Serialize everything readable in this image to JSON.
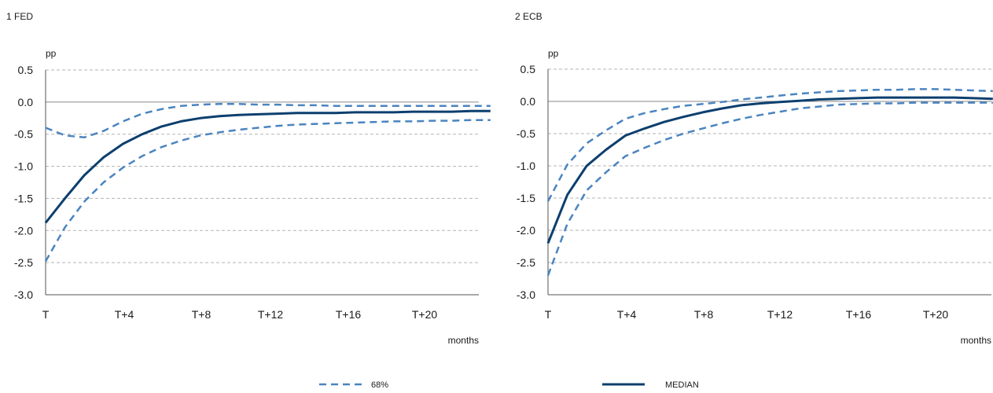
{
  "chart_data": [
    {
      "type": "line",
      "title": "1 FED",
      "ylabel": "pp",
      "xlabel": "months",
      "ylim": [
        -3.0,
        0.5
      ],
      "yticks": [
        "0.5",
        "0.0",
        "-0.5",
        "-1.0",
        "-1.5",
        "-2.0",
        "-2.5",
        "-3.0"
      ],
      "xticks": [
        "T",
        "T+4",
        "T+8",
        "T+12",
        "T+16",
        "T+20"
      ],
      "x": [
        0,
        1,
        2,
        3,
        4,
        5,
        6,
        7,
        8,
        9,
        10,
        11,
        12,
        13,
        14,
        15,
        16,
        17,
        18,
        19,
        20,
        21,
        22,
        23
      ],
      "grid": true,
      "series": [
        {
          "name": "MEDIAN",
          "style": "solid",
          "color": "#0c3f6e",
          "values": [
            -1.88,
            -1.5,
            -1.14,
            -0.86,
            -0.65,
            -0.5,
            -0.38,
            -0.3,
            -0.25,
            -0.22,
            -0.2,
            -0.19,
            -0.18,
            -0.17,
            -0.17,
            -0.17,
            -0.16,
            -0.16,
            -0.16,
            -0.15,
            -0.15,
            -0.15,
            -0.14,
            -0.14
          ]
        },
        {
          "name": "68%",
          "style": "dashed",
          "color": "#4a84c0",
          "values": [
            -0.4,
            -0.52,
            -0.55,
            -0.45,
            -0.3,
            -0.18,
            -0.11,
            -0.06,
            -0.04,
            -0.03,
            -0.03,
            -0.04,
            -0.04,
            -0.05,
            -0.05,
            -0.06,
            -0.06,
            -0.06,
            -0.06,
            -0.06,
            -0.06,
            -0.06,
            -0.06,
            -0.06
          ]
        },
        {
          "name": "68%",
          "style": "dashed",
          "color": "#4a84c0",
          "values": [
            -2.48,
            -1.95,
            -1.55,
            -1.25,
            -1.02,
            -0.84,
            -0.7,
            -0.6,
            -0.52,
            -0.47,
            -0.43,
            -0.4,
            -0.37,
            -0.35,
            -0.34,
            -0.33,
            -0.32,
            -0.31,
            -0.3,
            -0.3,
            -0.29,
            -0.29,
            -0.28,
            -0.28
          ]
        }
      ]
    },
    {
      "type": "line",
      "title": "2 ECB",
      "ylabel": "pp",
      "xlabel": "months",
      "ylim": [
        -3.0,
        0.5
      ],
      "yticks": [
        "0.5",
        "0.0",
        "-0.5",
        "-1.0",
        "-1.5",
        "-2.0",
        "-2.5",
        "-3.0"
      ],
      "xticks": [
        "T",
        "T+4",
        "T+8",
        "T+12",
        "T+16",
        "T+20"
      ],
      "x": [
        0,
        1,
        2,
        3,
        4,
        5,
        6,
        7,
        8,
        9,
        10,
        11,
        12,
        13,
        14,
        15,
        16,
        17,
        18,
        19,
        20,
        21,
        22,
        23
      ],
      "grid": true,
      "series": [
        {
          "name": "MEDIAN",
          "style": "solid",
          "color": "#0c3f6e",
          "values": [
            -2.2,
            -1.45,
            -1.0,
            -0.75,
            -0.53,
            -0.42,
            -0.32,
            -0.24,
            -0.17,
            -0.11,
            -0.06,
            -0.03,
            -0.01,
            0.01,
            0.03,
            0.04,
            0.05,
            0.06,
            0.06,
            0.06,
            0.06,
            0.06,
            0.05,
            0.04
          ]
        },
        {
          "name": "68%",
          "style": "dashed",
          "color": "#4a84c0",
          "values": [
            -1.55,
            -0.98,
            -0.65,
            -0.45,
            -0.27,
            -0.18,
            -0.12,
            -0.07,
            -0.04,
            -0.01,
            0.03,
            0.06,
            0.09,
            0.12,
            0.14,
            0.16,
            0.17,
            0.18,
            0.18,
            0.19,
            0.19,
            0.18,
            0.17,
            0.16
          ]
        },
        {
          "name": "68%",
          "style": "dashed",
          "color": "#4a84c0",
          "values": [
            -2.7,
            -1.9,
            -1.38,
            -1.1,
            -0.85,
            -0.72,
            -0.6,
            -0.5,
            -0.42,
            -0.34,
            -0.27,
            -0.21,
            -0.16,
            -0.11,
            -0.08,
            -0.05,
            -0.04,
            -0.03,
            -0.03,
            -0.02,
            -0.02,
            -0.02,
            -0.02,
            -0.02
          ]
        }
      ]
    }
  ],
  "legend": {
    "items": [
      {
        "label": "68%",
        "style": "dashed",
        "color": "#4a84c0"
      },
      {
        "label": "MEDIAN",
        "style": "solid",
        "color": "#0c3f6e"
      }
    ]
  }
}
